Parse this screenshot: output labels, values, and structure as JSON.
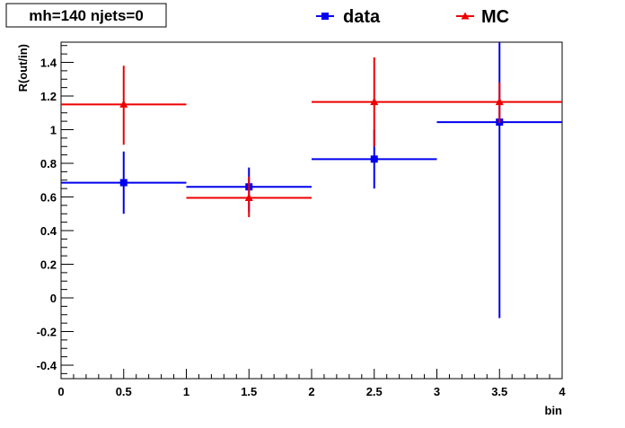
{
  "chart_data": {
    "type": "scatter",
    "title": "mh=140 njets=0",
    "xlabel": "bin",
    "ylabel": "R(out/in)",
    "xlim": [
      0,
      4
    ],
    "ylim": [
      -0.48,
      1.52
    ],
    "x_ticks": [
      "0",
      "0.5",
      "1",
      "1.5",
      "2",
      "2.5",
      "3",
      "3.5",
      "4"
    ],
    "y_ticks": [
      "-0.4",
      "-0.2",
      "0",
      "0.2",
      "0.4",
      "0.6",
      "0.8",
      "1",
      "1.2",
      "1.4"
    ],
    "grid": false,
    "legend_position": "top",
    "series": [
      {
        "name": "data",
        "color": "#0000ee",
        "marker": "square",
        "points": [
          {
            "x": 0.5,
            "xerr": 0.5,
            "y": 0.685,
            "ylo": 0.5,
            "yhi": 0.87
          },
          {
            "x": 1.5,
            "xerr": 0.5,
            "y": 0.66,
            "ylo": 0.51,
            "yhi": 0.775
          },
          {
            "x": 2.5,
            "xerr": 0.5,
            "y": 0.825,
            "ylo": 0.65,
            "yhi": 1.0
          },
          {
            "x": 3.5,
            "xerr": 0.5,
            "y": 1.045,
            "ylo": -0.12,
            "yhi": 1.52
          }
        ]
      },
      {
        "name": "MC",
        "color": "#ee0000",
        "marker": "triangle",
        "points": [
          {
            "x": 0.5,
            "xerr": 0.5,
            "y": 1.15,
            "ylo": 0.91,
            "yhi": 1.38
          },
          {
            "x": 1.5,
            "xerr": 0.5,
            "y": 0.595,
            "ylo": 0.48,
            "yhi": 0.72
          },
          {
            "x": 2.5,
            "xerr": 0.5,
            "y": 1.165,
            "ylo": 0.9,
            "yhi": 1.43
          },
          {
            "x": 3.5,
            "xerr": 0.5,
            "y": 1.165,
            "ylo": 1.04,
            "yhi": 1.28
          }
        ]
      }
    ]
  }
}
